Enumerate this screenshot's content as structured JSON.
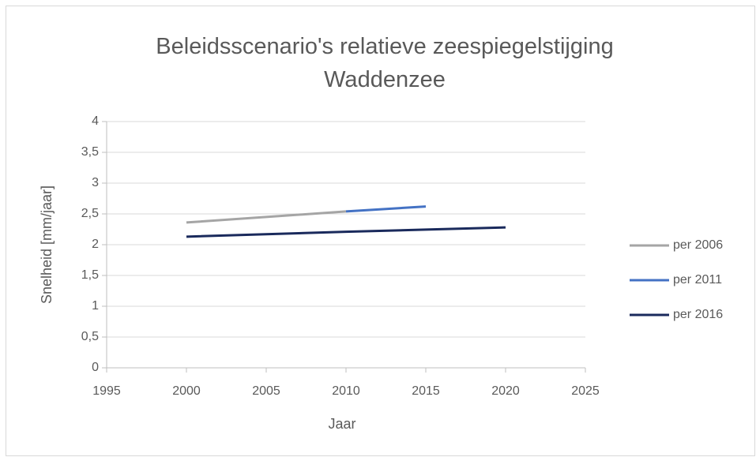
{
  "chart_data": {
    "type": "line",
    "title": "Beleidsscenario's relatieve zeespiegelstijging Waddenzee",
    "x_label": "Jaar",
    "y_label": "Snelheid [mm/jaar]",
    "x": [
      2000,
      2010,
      2015,
      2020
    ],
    "series": [
      {
        "name": "per 2006",
        "color": "#a5a5a5",
        "values": [
          2.36,
          2.54,
          null,
          null
        ]
      },
      {
        "name": "per 2011",
        "color": "#4472c4",
        "values": [
          null,
          2.54,
          2.62,
          null
        ]
      },
      {
        "name": "per 2016",
        "color": "#1a2a5c",
        "values": [
          2.13,
          2.21,
          2.245,
          2.28
        ]
      }
    ],
    "xlim": [
      1995,
      2025
    ],
    "xticks": [
      1995,
      2000,
      2005,
      2010,
      2015,
      2020,
      2025
    ],
    "ylim": [
      0,
      4
    ],
    "yticks": [
      0,
      {
        "value": 0.5,
        "label": "0,5"
      },
      1,
      {
        "value": 1.5,
        "label": "1,5"
      },
      2,
      {
        "value": 2.5,
        "label": "2,5"
      },
      3,
      {
        "value": 3.5,
        "label": "3,5"
      },
      4
    ],
    "grid": true,
    "legend": "right"
  }
}
